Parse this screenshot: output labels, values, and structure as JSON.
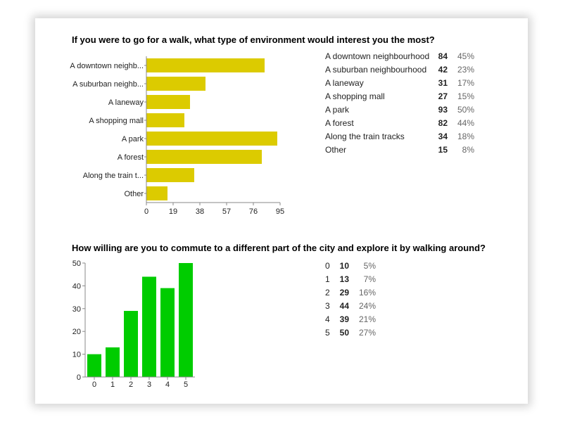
{
  "chart_data": [
    {
      "type": "bar",
      "orientation": "horizontal",
      "title": "If you were to go for a walk, what type of environment would interest you the most?",
      "categories": [
        "A downtown neighb...",
        "A suburban neighb...",
        "A laneway",
        "A shopping mall",
        "A park",
        "A forest",
        "Along the train t...",
        "Other"
      ],
      "values": [
        84,
        42,
        31,
        27,
        93,
        82,
        34,
        15
      ],
      "xticks": [
        "0",
        "19",
        "38",
        "57",
        "76",
        "95"
      ],
      "xlim": [
        0,
        95
      ],
      "bar_color": "#dccb00",
      "table": [
        {
          "label": "A downtown neighbourhood",
          "count": "84",
          "pct": "45%"
        },
        {
          "label": "A suburban neighbourhood",
          "count": "42",
          "pct": "23%"
        },
        {
          "label": "A laneway",
          "count": "31",
          "pct": "17%"
        },
        {
          "label": "A shopping mall",
          "count": "27",
          "pct": "15%"
        },
        {
          "label": "A park",
          "count": "93",
          "pct": "50%"
        },
        {
          "label": "A forest",
          "count": "82",
          "pct": "44%"
        },
        {
          "label": "Along the train tracks",
          "count": "34",
          "pct": "18%"
        },
        {
          "label": "Other",
          "count": "15",
          "pct": "8%"
        }
      ]
    },
    {
      "type": "bar",
      "orientation": "vertical",
      "title": "How willing are you to commute to a different part of the city and explore it by walking around?",
      "categories": [
        "0",
        "1",
        "2",
        "3",
        "4",
        "5"
      ],
      "values": [
        10,
        13,
        29,
        44,
        39,
        50
      ],
      "yticks": [
        "0",
        "10",
        "20",
        "30",
        "40",
        "50"
      ],
      "ylim": [
        0,
        50
      ],
      "bar_color": "#00cc00",
      "table": [
        {
          "label": "0",
          "count": "10",
          "pct": "5%"
        },
        {
          "label": "1",
          "count": "13",
          "pct": "7%"
        },
        {
          "label": "2",
          "count": "29",
          "pct": "16%"
        },
        {
          "label": "3",
          "count": "44",
          "pct": "24%"
        },
        {
          "label": "4",
          "count": "39",
          "pct": "21%"
        },
        {
          "label": "5",
          "count": "50",
          "pct": "27%"
        }
      ]
    }
  ]
}
